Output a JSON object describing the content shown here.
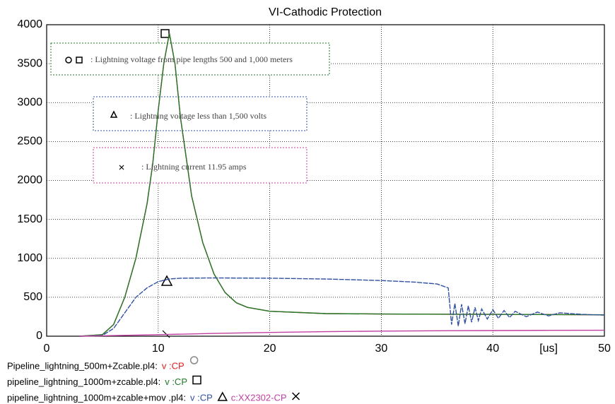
{
  "chart_data": {
    "type": "line",
    "title": "VI-Cathodic Protection",
    "x_unit": "[us]",
    "xlim": [
      0,
      50
    ],
    "xticks": [
      0,
      10,
      20,
      30,
      40,
      50
    ],
    "ylim": [
      0,
      4000
    ],
    "yticks": [
      0,
      500,
      1000,
      1500,
      2000,
      2500,
      3000,
      3500,
      4000
    ],
    "grid": true,
    "series": [
      {
        "name": "v :CP",
        "file": "Pipeline_lightning_500m+Zcable.pl4:",
        "color": "#e02020",
        "x": [
          3,
          5,
          6,
          7,
          8,
          9,
          9.5,
          10,
          10.5,
          11,
          11.5,
          12,
          12.5,
          13,
          14,
          15,
          16,
          17,
          18,
          20,
          25,
          30,
          40,
          50
        ],
        "values": [
          0,
          20,
          150,
          500,
          1000,
          1700,
          2200,
          2900,
          3500,
          3890,
          3500,
          2800,
          2300,
          1800,
          1200,
          800,
          560,
          430,
          370,
          320,
          290,
          285,
          280,
          275
        ]
      },
      {
        "name": "v :CP",
        "file": "pipeline_lightning_1000m+zcable.pl4:",
        "color": "#1f7a2a",
        "x": [
          3,
          5,
          6,
          7,
          8,
          9,
          9.5,
          10,
          10.5,
          11,
          11.5,
          12,
          12.5,
          13,
          14,
          15,
          16,
          17,
          18,
          20,
          25,
          30,
          40,
          50
        ],
        "values": [
          0,
          20,
          150,
          500,
          1000,
          1700,
          2200,
          2900,
          3500,
          3890,
          3500,
          2800,
          2300,
          1800,
          1200,
          800,
          560,
          430,
          370,
          320,
          290,
          285,
          280,
          275
        ]
      },
      {
        "name": "v :CP",
        "file": "pipeline_lightning_1000m+zcable+mov .pl4:",
        "color": "#3050a0",
        "x": [
          3,
          5,
          6,
          7,
          8,
          9,
          10,
          11,
          12,
          15,
          20,
          25,
          30,
          33,
          35,
          36,
          36.3,
          36.6,
          36.9,
          37.2,
          37.5,
          37.8,
          38.1,
          38.4,
          38.7,
          39,
          39.5,
          40,
          40.5,
          41,
          41.5,
          42,
          43,
          44,
          45,
          46,
          48,
          50
        ],
        "values": [
          0,
          10,
          100,
          300,
          500,
          620,
          700,
          735,
          745,
          748,
          745,
          735,
          715,
          695,
          670,
          620,
          150,
          420,
          130,
          410,
          160,
          390,
          180,
          370,
          200,
          350,
          220,
          340,
          230,
          330,
          240,
          320,
          250,
          310,
          260,
          300,
          280,
          270
        ]
      },
      {
        "name": "c:XX2302-CP",
        "color": "#c040a0",
        "x": [
          3,
          5,
          10,
          15,
          20,
          25,
          30,
          35,
          40,
          45,
          50
        ],
        "values": [
          0,
          5,
          20,
          35,
          48,
          58,
          65,
          70,
          73,
          75,
          76
        ]
      }
    ],
    "annotations": [
      ": Lightning voltage from pipe lengths 500 and 1,000 meters",
      ": Lightning voltage less than 1,500 volts",
      ": Lightning current 11.95 amps"
    ]
  }
}
